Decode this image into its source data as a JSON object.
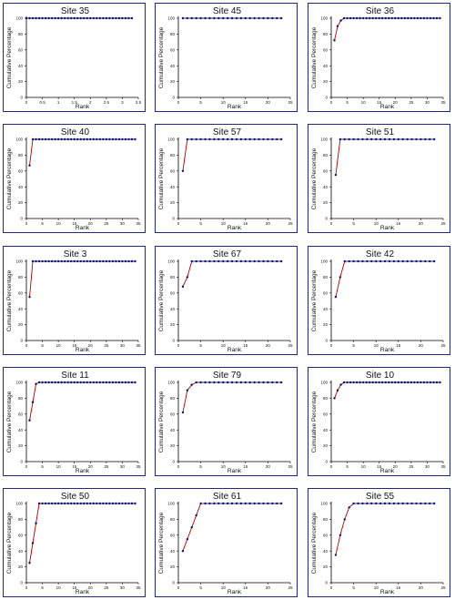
{
  "colors": {
    "frame": "#1f2a7a",
    "early_line": "#b00000",
    "plateau_line": "#10106a",
    "marker": "#10106a"
  },
  "common": {
    "xlabel": "Rank",
    "ylabel": "Cumulative Percentage"
  },
  "chart_data": [
    {
      "type": "line",
      "title": "Site 35",
      "xlabel": "Rank",
      "ylabel": "Cumulative Percentage",
      "x_ticks": [
        "0",
        "0.5",
        "1",
        "1.5",
        "2",
        "2.5",
        "3",
        "3.5"
      ],
      "y_ticks": [
        "0",
        "20",
        "40",
        "60",
        "80",
        "100"
      ],
      "xlim": [
        0,
        3.5
      ],
      "ylim": [
        0,
        100
      ],
      "x": [
        0.0,
        0.1,
        0.2,
        0.3,
        0.4,
        0.5,
        0.6,
        0.7,
        0.8,
        0.9,
        1.0,
        1.1,
        1.2,
        1.3,
        1.4,
        1.5,
        1.6,
        1.7,
        1.8,
        1.9,
        2.0,
        2.1,
        2.2,
        2.3,
        2.4,
        2.5,
        2.6,
        2.7,
        2.8,
        2.9,
        3.0,
        3.1,
        3.2,
        3.3
      ],
      "y": [
        100,
        100,
        100,
        100,
        100,
        100,
        100,
        100,
        100,
        100,
        100,
        100,
        100,
        100,
        100,
        100,
        100,
        100,
        100,
        100,
        100,
        100,
        100,
        100,
        100,
        100,
        100,
        100,
        100,
        100,
        100,
        100,
        100,
        100
      ],
      "red_until": 0
    },
    {
      "type": "line",
      "title": "Site 45",
      "xlabel": "Rank",
      "ylabel": "Cumulative Percentage",
      "x_ticks": [
        "0",
        "5",
        "10",
        "15",
        "20",
        "25"
      ],
      "y_ticks": [
        "0",
        "20",
        "40",
        "60",
        "80",
        "100"
      ],
      "xlim": [
        0,
        25
      ],
      "ylim": [
        0,
        100
      ],
      "x": [
        1,
        2,
        3,
        4,
        5,
        6,
        7,
        8,
        9,
        10,
        11,
        12,
        13,
        14,
        15,
        16,
        17,
        18,
        19,
        20,
        21,
        22,
        23
      ],
      "y": [
        100,
        100,
        100,
        100,
        100,
        100,
        100,
        100,
        100,
        100,
        100,
        100,
        100,
        100,
        100,
        100,
        100,
        100,
        100,
        100,
        100,
        100,
        100
      ],
      "red_until": 0
    },
    {
      "type": "line",
      "title": "Site 36",
      "xlabel": "Rank",
      "ylabel": "Cumulative Percentage",
      "x_ticks": [
        "0",
        "5",
        "10",
        "15",
        "20",
        "25",
        "30",
        "35"
      ],
      "y_ticks": [
        "0",
        "20",
        "40",
        "60",
        "80",
        "100"
      ],
      "xlim": [
        0,
        35
      ],
      "ylim": [
        0,
        100
      ],
      "x": [
        1,
        2,
        3,
        4,
        5,
        6,
        7,
        8,
        9,
        10,
        11,
        12,
        13,
        14,
        15,
        16,
        17,
        18,
        19,
        20,
        21,
        22,
        23,
        24,
        25,
        26,
        27,
        28,
        29,
        30,
        31,
        32,
        33,
        34
      ],
      "y": [
        72,
        90,
        97,
        100,
        100,
        100,
        100,
        100,
        100,
        100,
        100,
        100,
        100,
        100,
        100,
        100,
        100,
        100,
        100,
        100,
        100,
        100,
        100,
        100,
        100,
        100,
        100,
        100,
        100,
        100,
        100,
        100,
        100,
        100
      ],
      "red_until": 3
    },
    {
      "type": "line",
      "title": "Site 40",
      "xlabel": "Rank",
      "ylabel": "Cumulative Percentage",
      "x_ticks": [
        "0",
        "5",
        "10",
        "15",
        "20",
        "25",
        "30",
        "35"
      ],
      "y_ticks": [
        "0",
        "20",
        "40",
        "60",
        "80",
        "100"
      ],
      "xlim": [
        0,
        35
      ],
      "ylim": [
        0,
        100
      ],
      "x": [
        1,
        2,
        3,
        4,
        5,
        6,
        7,
        8,
        9,
        10,
        11,
        12,
        13,
        14,
        15,
        16,
        17,
        18,
        19,
        20,
        21,
        22,
        23,
        24,
        25,
        26,
        27,
        28,
        29,
        30,
        31,
        32,
        33,
        34
      ],
      "y": [
        67,
        100,
        100,
        100,
        100,
        100,
        100,
        100,
        100,
        100,
        100,
        100,
        100,
        100,
        100,
        100,
        100,
        100,
        100,
        100,
        100,
        100,
        100,
        100,
        100,
        100,
        100,
        100,
        100,
        100,
        100,
        100,
        100,
        100
      ],
      "red_until": 1
    },
    {
      "type": "line",
      "title": "Site 57",
      "xlabel": "Rank",
      "ylabel": "Cumulative Percentage",
      "x_ticks": [
        "0",
        "5",
        "10",
        "15",
        "20",
        "25"
      ],
      "y_ticks": [
        "0",
        "20",
        "40",
        "60",
        "80",
        "100"
      ],
      "xlim": [
        0,
        25
      ],
      "ylim": [
        0,
        100
      ],
      "x": [
        1,
        2,
        3,
        4,
        5,
        6,
        7,
        8,
        9,
        10,
        11,
        12,
        13,
        14,
        15,
        16,
        17,
        18,
        19,
        20,
        21,
        22,
        23
      ],
      "y": [
        60,
        100,
        100,
        100,
        100,
        100,
        100,
        100,
        100,
        100,
        100,
        100,
        100,
        100,
        100,
        100,
        100,
        100,
        100,
        100,
        100,
        100,
        100
      ],
      "red_until": 1
    },
    {
      "type": "line",
      "title": "Site 51",
      "xlabel": "Rank",
      "ylabel": "Cumulative Percentage",
      "x_ticks": [
        "0",
        "5",
        "10",
        "15",
        "20",
        "25"
      ],
      "y_ticks": [
        "0",
        "20",
        "40",
        "60",
        "80",
        "100"
      ],
      "xlim": [
        0,
        25
      ],
      "ylim": [
        0,
        100
      ],
      "x": [
        1,
        2,
        3,
        4,
        5,
        6,
        7,
        8,
        9,
        10,
        11,
        12,
        13,
        14,
        15,
        16,
        17,
        18,
        19,
        20,
        21,
        22,
        23
      ],
      "y": [
        55,
        100,
        100,
        100,
        100,
        100,
        100,
        100,
        100,
        100,
        100,
        100,
        100,
        100,
        100,
        100,
        100,
        100,
        100,
        100,
        100,
        100,
        100
      ],
      "red_until": 1
    },
    {
      "type": "line",
      "title": "Site 3",
      "xlabel": "Rank",
      "ylabel": "Cumulative Percentage",
      "x_ticks": [
        "0",
        "5",
        "10",
        "15",
        "20",
        "25",
        "30",
        "35"
      ],
      "y_ticks": [
        "0",
        "20",
        "40",
        "60",
        "80",
        "100"
      ],
      "xlim": [
        0,
        35
      ],
      "ylim": [
        0,
        100
      ],
      "x": [
        1,
        2,
        3,
        4,
        5,
        6,
        7,
        8,
        9,
        10,
        11,
        12,
        13,
        14,
        15,
        16,
        17,
        18,
        19,
        20,
        21,
        22,
        23,
        24,
        25,
        26,
        27,
        28,
        29,
        30,
        31,
        32,
        33,
        34
      ],
      "y": [
        55,
        100,
        100,
        100,
        100,
        100,
        100,
        100,
        100,
        100,
        100,
        100,
        100,
        100,
        100,
        100,
        100,
        100,
        100,
        100,
        100,
        100,
        100,
        100,
        100,
        100,
        100,
        100,
        100,
        100,
        100,
        100,
        100,
        100
      ],
      "red_until": 1
    },
    {
      "type": "line",
      "title": "Site 67",
      "xlabel": "Rank",
      "ylabel": "Cumulative Percentage",
      "x_ticks": [
        "0",
        "5",
        "10",
        "15",
        "20",
        "25"
      ],
      "y_ticks": [
        "0",
        "20",
        "40",
        "60",
        "80",
        "100"
      ],
      "xlim": [
        0,
        25
      ],
      "ylim": [
        0,
        100
      ],
      "x": [
        1,
        2,
        3,
        4,
        5,
        6,
        7,
        8,
        9,
        10,
        11,
        12,
        13,
        14,
        15,
        16,
        17,
        18,
        19,
        20,
        21,
        22,
        23
      ],
      "y": [
        68,
        80,
        100,
        100,
        100,
        100,
        100,
        100,
        100,
        100,
        100,
        100,
        100,
        100,
        100,
        100,
        100,
        100,
        100,
        100,
        100,
        100,
        100
      ],
      "red_until": 2
    },
    {
      "type": "line",
      "title": "Site 42",
      "xlabel": "Rank",
      "ylabel": "Cumulative Percentage",
      "x_ticks": [
        "0",
        "5",
        "10",
        "15",
        "20",
        "25"
      ],
      "y_ticks": [
        "0",
        "20",
        "40",
        "60",
        "80",
        "100"
      ],
      "xlim": [
        0,
        25
      ],
      "ylim": [
        0,
        100
      ],
      "x": [
        1,
        2,
        3,
        4,
        5,
        6,
        7,
        8,
        9,
        10,
        11,
        12,
        13,
        14,
        15,
        16,
        17,
        18,
        19,
        20,
        21,
        22,
        23
      ],
      "y": [
        55,
        80,
        100,
        100,
        100,
        100,
        100,
        100,
        100,
        100,
        100,
        100,
        100,
        100,
        100,
        100,
        100,
        100,
        100,
        100,
        100,
        100,
        100
      ],
      "red_until": 2
    },
    {
      "type": "line",
      "title": "Site 11",
      "xlabel": "Rank",
      "ylabel": "Cumulative Percentage",
      "x_ticks": [
        "0",
        "5",
        "10",
        "15",
        "20",
        "25",
        "30",
        "35"
      ],
      "y_ticks": [
        "0",
        "20",
        "40",
        "60",
        "80",
        "100"
      ],
      "xlim": [
        0,
        35
      ],
      "ylim": [
        0,
        100
      ],
      "x": [
        1,
        2,
        3,
        4,
        5,
        6,
        7,
        8,
        9,
        10,
        11,
        12,
        13,
        14,
        15,
        16,
        17,
        18,
        19,
        20,
        21,
        22,
        23,
        24,
        25,
        26,
        27,
        28,
        29,
        30,
        31,
        32,
        33,
        34
      ],
      "y": [
        52,
        75,
        98,
        100,
        100,
        100,
        100,
        100,
        100,
        100,
        100,
        100,
        100,
        100,
        100,
        100,
        100,
        100,
        100,
        100,
        100,
        100,
        100,
        100,
        100,
        100,
        100,
        100,
        100,
        100,
        100,
        100,
        100,
        100
      ],
      "red_until": 3
    },
    {
      "type": "line",
      "title": "Site 79",
      "xlabel": "Rank",
      "ylabel": "Cumulative Percentage",
      "x_ticks": [
        "0",
        "5",
        "10",
        "15",
        "20",
        "25"
      ],
      "y_ticks": [
        "0",
        "20",
        "40",
        "60",
        "80",
        "100"
      ],
      "xlim": [
        0,
        25
      ],
      "ylim": [
        0,
        100
      ],
      "x": [
        1,
        2,
        3,
        4,
        5,
        6,
        7,
        8,
        9,
        10,
        11,
        12,
        13,
        14,
        15,
        16,
        17,
        18,
        19,
        20,
        21,
        22,
        23
      ],
      "y": [
        62,
        90,
        97,
        100,
        100,
        100,
        100,
        100,
        100,
        100,
        100,
        100,
        100,
        100,
        100,
        100,
        100,
        100,
        100,
        100,
        100,
        100,
        100
      ],
      "red_until": 3
    },
    {
      "type": "line",
      "title": "Site 10",
      "xlabel": "Rank",
      "ylabel": "Cumulative Percentage",
      "x_ticks": [
        "0",
        "5",
        "10",
        "15",
        "20",
        "25",
        "30",
        "35"
      ],
      "y_ticks": [
        "0",
        "20",
        "40",
        "60",
        "80",
        "100"
      ],
      "xlim": [
        0,
        35
      ],
      "ylim": [
        0,
        100
      ],
      "x": [
        1,
        2,
        3,
        4,
        5,
        6,
        7,
        8,
        9,
        10,
        11,
        12,
        13,
        14,
        15,
        16,
        17,
        18,
        19,
        20,
        21,
        22,
        23,
        24,
        25,
        26,
        27,
        28,
        29,
        30,
        31,
        32,
        33,
        34
      ],
      "y": [
        80,
        90,
        97,
        100,
        100,
        100,
        100,
        100,
        100,
        100,
        100,
        100,
        100,
        100,
        100,
        100,
        100,
        100,
        100,
        100,
        100,
        100,
        100,
        100,
        100,
        100,
        100,
        100,
        100,
        100,
        100,
        100,
        100,
        100
      ],
      "red_until": 3
    },
    {
      "type": "line",
      "title": "Site 50",
      "xlabel": "Rank",
      "ylabel": "Cumulative Percentage",
      "x_ticks": [
        "0",
        "5",
        "10",
        "15",
        "20",
        "25",
        "30",
        "35"
      ],
      "y_ticks": [
        "0",
        "20",
        "40",
        "60",
        "80",
        "100"
      ],
      "xlim": [
        0,
        35
      ],
      "ylim": [
        0,
        100
      ],
      "x": [
        1,
        2,
        3,
        4,
        5,
        6,
        7,
        8,
        9,
        10,
        11,
        12,
        13,
        14,
        15,
        16,
        17,
        18,
        19,
        20,
        21,
        22,
        23,
        24,
        25,
        26,
        27,
        28,
        29,
        30,
        31,
        32,
        33,
        34
      ],
      "y": [
        25,
        50,
        75,
        100,
        100,
        100,
        100,
        100,
        100,
        100,
        100,
        100,
        100,
        100,
        100,
        100,
        100,
        100,
        100,
        100,
        100,
        100,
        100,
        100,
        100,
        100,
        100,
        100,
        100,
        100,
        100,
        100,
        100,
        100
      ],
      "red_until": 4
    },
    {
      "type": "line",
      "title": "Site 61",
      "xlabel": "Rank",
      "ylabel": "Cumulative Percentage",
      "x_ticks": [
        "0",
        "5",
        "10",
        "15",
        "20",
        "25"
      ],
      "y_ticks": [
        "0",
        "20",
        "40",
        "60",
        "80",
        "100"
      ],
      "xlim": [
        0,
        25
      ],
      "ylim": [
        0,
        100
      ],
      "x": [
        1,
        2,
        3,
        4,
        5,
        6,
        7,
        8,
        9,
        10,
        11,
        12,
        13,
        14,
        15,
        16,
        17,
        18,
        19,
        20,
        21,
        22,
        23
      ],
      "y": [
        40,
        55,
        70,
        85,
        100,
        100,
        100,
        100,
        100,
        100,
        100,
        100,
        100,
        100,
        100,
        100,
        100,
        100,
        100,
        100,
        100,
        100,
        100
      ],
      "red_until": 5
    },
    {
      "type": "line",
      "title": "Site 55",
      "xlabel": "Rank",
      "ylabel": "Cumulative Percentage",
      "x_ticks": [
        "0",
        "5",
        "10",
        "15",
        "20",
        "25"
      ],
      "y_ticks": [
        "0",
        "20",
        "40",
        "60",
        "80",
        "100"
      ],
      "xlim": [
        0,
        25
      ],
      "ylim": [
        0,
        100
      ],
      "x": [
        1,
        2,
        3,
        4,
        5,
        6,
        7,
        8,
        9,
        10,
        11,
        12,
        13,
        14,
        15,
        16,
        17,
        18,
        19,
        20,
        21,
        22,
        23
      ],
      "y": [
        35,
        60,
        80,
        95,
        100,
        100,
        100,
        100,
        100,
        100,
        100,
        100,
        100,
        100,
        100,
        100,
        100,
        100,
        100,
        100,
        100,
        100,
        100
      ],
      "red_until": 4
    }
  ]
}
